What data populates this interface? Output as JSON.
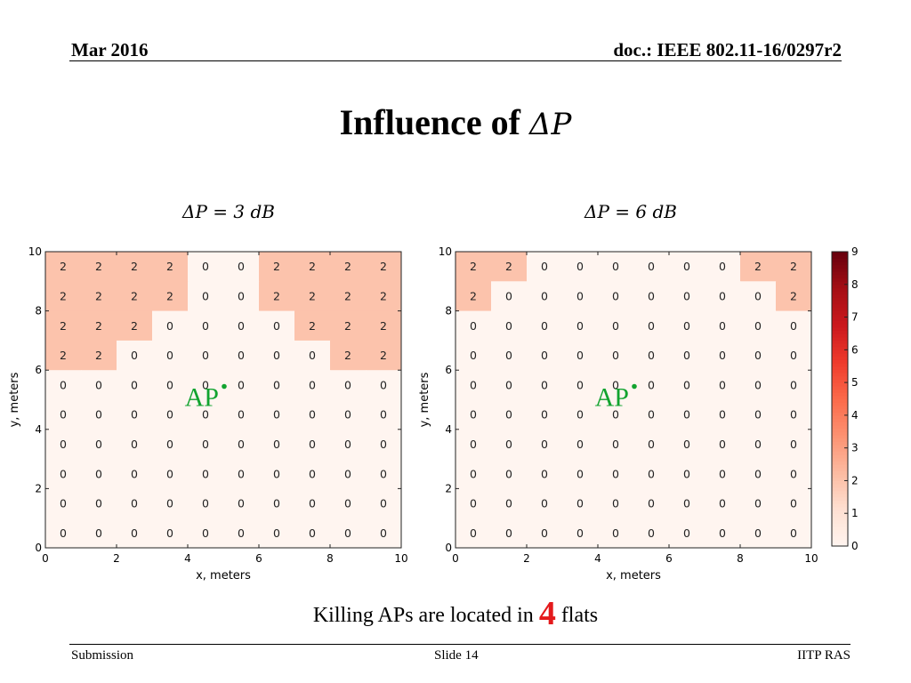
{
  "header": {
    "date": "Mar 2016",
    "doc": "doc.: IEEE 802.11-16/0297r2"
  },
  "title": {
    "text": "Influence of ",
    "math": "ΔP"
  },
  "footer": {
    "left": "Submission",
    "center": "Slide 14",
    "right": "IITP RAS"
  },
  "caption": {
    "before": "Killing APs are located in ",
    "number": "4",
    "after": " flats"
  },
  "chart_data": [
    {
      "type": "heatmap",
      "title": "ΔP = 3 dB",
      "xlabel": "x, meters",
      "ylabel": "y, meters",
      "xlim": [
        0,
        10
      ],
      "ylim": [
        0,
        10
      ],
      "x_ticks": [
        "0",
        "2",
        "4",
        "6",
        "8",
        "10"
      ],
      "y_ticks": [
        "0",
        "2",
        "4",
        "6",
        "8",
        "10"
      ],
      "annotation": {
        "text": "AP",
        "point": [
          5,
          5
        ]
      },
      "grid": [
        [
          2,
          2,
          2,
          2,
          0,
          0,
          2,
          2,
          2,
          2
        ],
        [
          2,
          2,
          2,
          2,
          0,
          0,
          2,
          2,
          2,
          2
        ],
        [
          2,
          2,
          2,
          0,
          0,
          0,
          0,
          2,
          2,
          2
        ],
        [
          2,
          2,
          0,
          0,
          0,
          0,
          0,
          0,
          2,
          2
        ],
        [
          0,
          0,
          0,
          0,
          0,
          0,
          0,
          0,
          0,
          0
        ],
        [
          0,
          0,
          0,
          0,
          0,
          0,
          0,
          0,
          0,
          0
        ],
        [
          0,
          0,
          0,
          0,
          0,
          0,
          0,
          0,
          0,
          0
        ],
        [
          0,
          0,
          0,
          0,
          0,
          0,
          0,
          0,
          0,
          0
        ],
        [
          0,
          0,
          0,
          0,
          0,
          0,
          0,
          0,
          0,
          0
        ],
        [
          0,
          0,
          0,
          0,
          0,
          0,
          0,
          0,
          0,
          0
        ]
      ]
    },
    {
      "type": "heatmap",
      "title": "ΔP = 6 dB",
      "xlabel": "x, meters",
      "ylabel": "y, meters",
      "xlim": [
        0,
        10
      ],
      "ylim": [
        0,
        10
      ],
      "x_ticks": [
        "0",
        "2",
        "4",
        "6",
        "8",
        "10"
      ],
      "y_ticks": [
        "0",
        "2",
        "4",
        "6",
        "8",
        "10"
      ],
      "annotation": {
        "text": "AP",
        "point": [
          5,
          5
        ]
      },
      "grid": [
        [
          2,
          2,
          0,
          0,
          0,
          0,
          0,
          0,
          2,
          2
        ],
        [
          2,
          0,
          0,
          0,
          0,
          0,
          0,
          0,
          0,
          2
        ],
        [
          0,
          0,
          0,
          0,
          0,
          0,
          0,
          0,
          0,
          0
        ],
        [
          0,
          0,
          0,
          0,
          0,
          0,
          0,
          0,
          0,
          0
        ],
        [
          0,
          0,
          0,
          0,
          0,
          0,
          0,
          0,
          0,
          0
        ],
        [
          0,
          0,
          0,
          0,
          0,
          0,
          0,
          0,
          0,
          0
        ],
        [
          0,
          0,
          0,
          0,
          0,
          0,
          0,
          0,
          0,
          0
        ],
        [
          0,
          0,
          0,
          0,
          0,
          0,
          0,
          0,
          0,
          0
        ],
        [
          0,
          0,
          0,
          0,
          0,
          0,
          0,
          0,
          0,
          0
        ],
        [
          0,
          0,
          0,
          0,
          0,
          0,
          0,
          0,
          0,
          0
        ]
      ],
      "colorbar": {
        "range": [
          0,
          9
        ],
        "ticks": [
          "0",
          "1",
          "2",
          "3",
          "4",
          "5",
          "6",
          "7",
          "8",
          "9"
        ],
        "color_low": "#fff5f0",
        "color_high": "#67000d"
      }
    }
  ]
}
